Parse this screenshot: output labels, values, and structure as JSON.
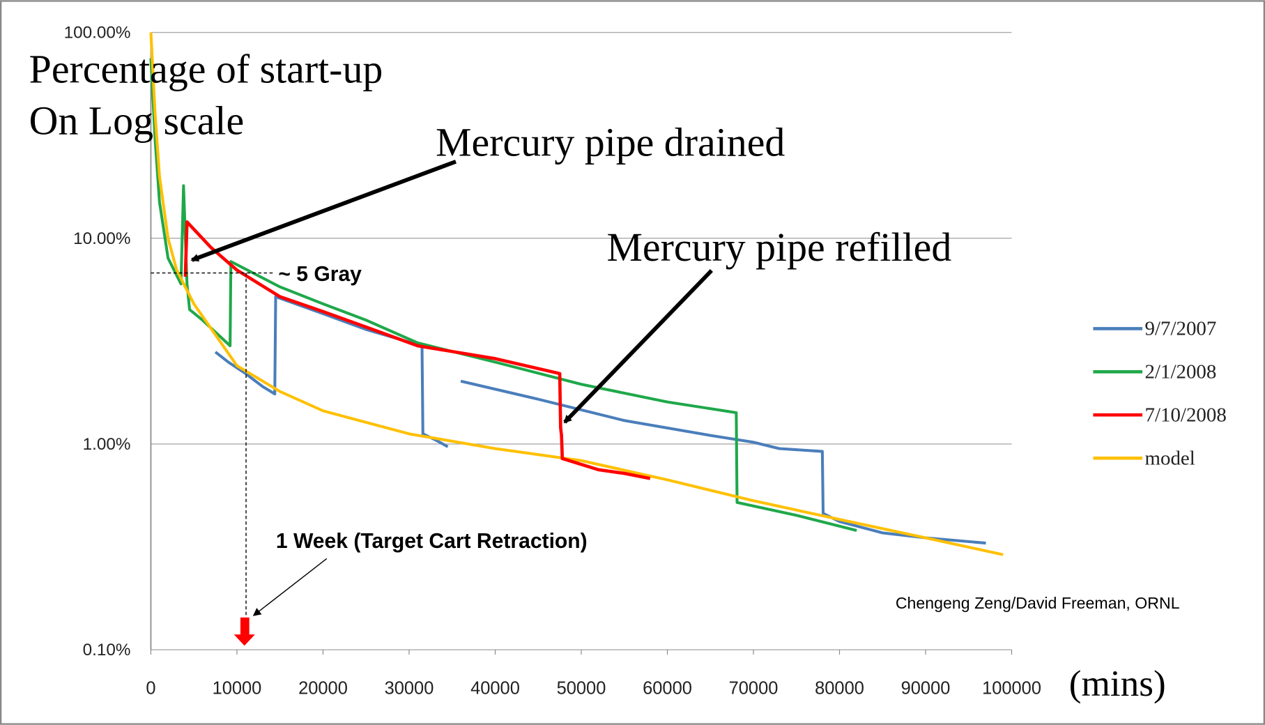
{
  "chart_data": {
    "type": "line",
    "title": "Percentage of start-up",
    "subtitle": "On Log scale",
    "x_label": "(mins)",
    "yscale": "log",
    "xlim": [
      0,
      100000
    ],
    "xticks": [
      0,
      10000,
      20000,
      30000,
      40000,
      50000,
      60000,
      70000,
      80000,
      90000,
      100000
    ],
    "ylim": [
      0.1,
      100
    ],
    "yticks": [
      {
        "value": 0.1,
        "label": "0.10%"
      },
      {
        "value": 1,
        "label": "1.00%"
      },
      {
        "value": 10,
        "label": "10.00%"
      },
      {
        "value": 100,
        "label": "100.00%"
      }
    ],
    "grid": true,
    "legend": "right",
    "annotations": [
      {
        "text": "Mercury pipe drained"
      },
      {
        "text": "Mercury pipe refilled"
      },
      {
        "text": "~ 5 Gray"
      },
      {
        "text": "1 Week (Target Cart Retraction)"
      },
      {
        "text": "Chengeng Zeng/David Freeman, ORNL"
      }
    ],
    "series": [
      {
        "name": "9/7/2007",
        "color": "#4a7ebb",
        "x": [
          7500,
          9000,
          11000,
          13000,
          14400,
          14500,
          20000,
          25000,
          31500,
          31600,
          33000,
          34500,
          null,
          36000,
          45000,
          55000,
          65000,
          70000,
          73000,
          78000,
          78100,
          80000,
          85000,
          90000,
          97000
        ],
        "values": [
          2.8,
          2.5,
          2.2,
          1.9,
          1.75,
          5.2,
          4.3,
          3.6,
          3.0,
          1.12,
          1.05,
          0.97,
          null,
          2.02,
          1.65,
          1.3,
          1.1,
          1.02,
          0.95,
          0.92,
          0.46,
          0.42,
          0.37,
          0.35,
          0.33
        ]
      },
      {
        "name": "2/1/2008",
        "color": "#1fa84a",
        "x": [
          0,
          500,
          1000,
          2000,
          3500,
          3800,
          4200,
          4500,
          6000,
          9200,
          9300,
          15000,
          20000,
          25000,
          31000,
          40000,
          50000,
          60000,
          68000,
          68100,
          75000,
          82000
        ],
        "values": [
          75,
          30,
          15,
          8,
          6,
          18,
          6,
          4.5,
          4,
          3.0,
          7.7,
          5.8,
          4.8,
          4,
          3.1,
          2.5,
          1.95,
          1.6,
          1.42,
          0.52,
          0.45,
          0.38
        ]
      },
      {
        "name": "7/10/2008",
        "color": "#ff0000",
        "x": [
          4000,
          4200,
          7000,
          10000,
          15000,
          20000,
          25000,
          31000,
          40000,
          47500,
          47600,
          47700,
          47800,
          52000,
          55000,
          58000
        ],
        "values": [
          6.5,
          12,
          9,
          7,
          5.2,
          4.4,
          3.7,
          3.0,
          2.6,
          2.2,
          1.2,
          1.1,
          0.85,
          0.75,
          0.72,
          0.68
        ]
      },
      {
        "name": "model",
        "color": "#ffc000",
        "x": [
          0,
          500,
          1000,
          2000,
          3000,
          5000,
          10000,
          15000,
          20000,
          30000,
          40000,
          50000,
          60000,
          70000,
          80000,
          90000,
          99000
        ],
        "values": [
          100,
          40,
          20,
          10,
          7,
          4.8,
          2.4,
          1.8,
          1.45,
          1.12,
          0.95,
          0.83,
          0.67,
          0.53,
          0.43,
          0.35,
          0.29
        ]
      }
    ]
  }
}
